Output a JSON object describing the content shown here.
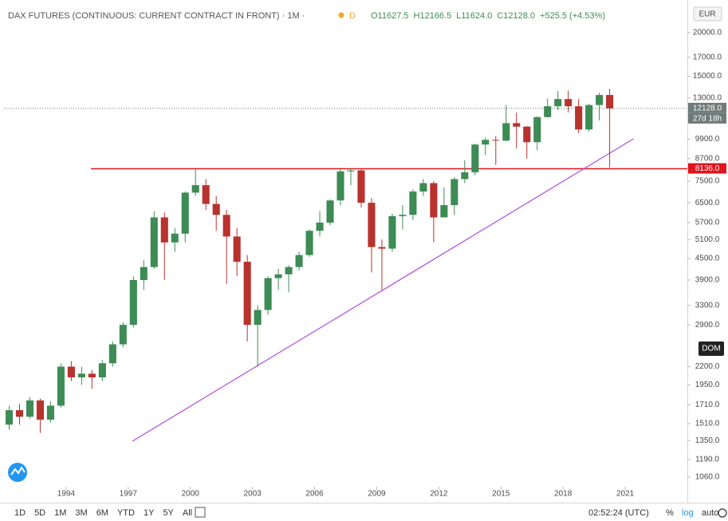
{
  "chart_data": {
    "type": "candlestick",
    "title": "DAX FUTURES (CONTINUOUS: CURRENT CONTRACT IN FRONT) · 1M ·",
    "interval_badge": "D",
    "header_ohlc": [
      "O11627.5",
      "H12166.5",
      "L11624.0",
      "C12128.0",
      "+525.5 (+4.53%)"
    ],
    "currency": "EUR",
    "log_scale": true,
    "grid": false,
    "up_color": "#3d8b55",
    "down_color": "#b8322e",
    "x": [
      1991.0,
      1991.5,
      1992.0,
      1992.5,
      1993.0,
      1993.5,
      1994.0,
      1994.5,
      1995.0,
      1995.5,
      1996.0,
      1996.5,
      1997.0,
      1997.5,
      1998.0,
      1998.5,
      1999.0,
      1999.5,
      2000.0,
      2000.5,
      2001.0,
      2001.5,
      2002.0,
      2002.5,
      2003.0,
      2003.5,
      2004.0,
      2004.5,
      2005.0,
      2005.5,
      2006.0,
      2006.5,
      2007.0,
      2007.5,
      2008.0,
      2008.5,
      2009.0,
      2009.5,
      2010.0,
      2010.5,
      2011.0,
      2011.5,
      2012.0,
      2012.5,
      2013.0,
      2013.5,
      2014.0,
      2014.5,
      2015.0,
      2015.5,
      2016.0,
      2016.5,
      2017.0,
      2017.5,
      2018.0,
      2018.5,
      2019.0,
      2019.5,
      2020.0
    ],
    "open": [
      1500,
      1650,
      1580,
      1760,
      1550,
      1700,
      2200,
      2050,
      2100,
      2050,
      2250,
      2550,
      2900,
      3900,
      4250,
      5900,
      5000,
      5300,
      6950,
      7300,
      6450,
      6000,
      5200,
      4400,
      2900,
      3200,
      3950,
      4050,
      4250,
      4600,
      5400,
      5700,
      6600,
      8000,
      8050,
      6500,
      4850,
      4800,
      5950,
      6000,
      7000,
      7400,
      5900,
      6400,
      7600,
      7950,
      9550,
      9850,
      9800,
      11000,
      10750,
      9700,
      11450,
      12300,
      12900,
      12300,
      10550,
      12400,
      13250
    ],
    "high": [
      1700,
      1720,
      1800,
      1780,
      1750,
      2250,
      2280,
      2200,
      2150,
      2300,
      2600,
      2950,
      4000,
      4450,
      6150,
      6100,
      5500,
      7000,
      8100,
      7600,
      6800,
      6200,
      5500,
      4600,
      3300,
      4000,
      4200,
      4300,
      4700,
      5450,
      6150,
      6650,
      8100,
      8150,
      8100,
      6700,
      5100,
      6050,
      6400,
      7100,
      7600,
      7500,
      7200,
      7700,
      8600,
      9600,
      10000,
      10100,
      12400,
      11800,
      10800,
      11500,
      12950,
      13600,
      13650,
      12900,
      12500,
      13450,
      13800
    ],
    "low": [
      1450,
      1500,
      1560,
      1420,
      1520,
      1680,
      2000,
      1950,
      1900,
      2000,
      2200,
      2500,
      2850,
      3650,
      4200,
      3900,
      4700,
      5000,
      6800,
      6200,
      5400,
      3800,
      4000,
      2600,
      2200,
      3100,
      3650,
      3600,
      4150,
      4550,
      5200,
      5600,
      6400,
      7300,
      6300,
      4100,
      3650,
      4700,
      5450,
      5800,
      6800,
      5000,
      5900,
      6000,
      7400,
      7800,
      8900,
      8350,
      9750,
      9300,
      8700,
      9200,
      11400,
      12000,
      11800,
      10300,
      10400,
      11200,
      8200
    ],
    "close": [
      1650,
      1580,
      1760,
      1550,
      1700,
      2200,
      2050,
      2100,
      2050,
      2250,
      2550,
      2900,
      3900,
      4250,
      5900,
      5000,
      5300,
      6950,
      7300,
      6450,
      6000,
      5200,
      4400,
      2900,
      3200,
      3950,
      4050,
      4250,
      4600,
      5400,
      5700,
      6600,
      8000,
      8050,
      6500,
      4850,
      4800,
      5950,
      6000,
      7000,
      7400,
      5900,
      6400,
      7600,
      7950,
      9550,
      9850,
      9800,
      11000,
      10750,
      9700,
      11450,
      12300,
      12900,
      12300,
      10550,
      12400,
      13250,
      12128
    ],
    "xlim": [
      1991,
      2024
    ],
    "xticks": [
      1994,
      1997,
      2000,
      2003,
      2006,
      2009,
      2012,
      2015,
      2018,
      2021
    ],
    "ylim": [
      905,
      24180
    ],
    "yticks": [
      {
        "value": 1060,
        "label": "1060.0"
      },
      {
        "value": 1190,
        "label": "1190.0"
      },
      {
        "value": 1350,
        "label": "1350.0"
      },
      {
        "value": 1510,
        "label": "1510.0"
      },
      {
        "value": 1710,
        "label": "1710.0"
      },
      {
        "value": 1950,
        "label": "1950.0"
      },
      {
        "value": 2200,
        "label": "2200.0"
      },
      {
        "value": 2900,
        "label": "2900.0"
      },
      {
        "value": 3300,
        "label": "3300.0"
      },
      {
        "value": 3900,
        "label": "3900.0"
      },
      {
        "value": 4500,
        "label": "4500.0"
      },
      {
        "value": 5100,
        "label": "5100.0"
      },
      {
        "value": 5700,
        "label": "5700.0"
      },
      {
        "value": 6500,
        "label": "6500.0"
      },
      {
        "value": 7500,
        "label": "7500.0"
      },
      {
        "value": 8700,
        "label": "8700.0"
      },
      {
        "value": 9900,
        "label": "9900.0"
      },
      {
        "value": 13000,
        "label": "13000.0"
      },
      {
        "value": 15000,
        "label": "15000.0"
      },
      {
        "value": 17000,
        "label": "17000.0"
      },
      {
        "value": 20000,
        "label": "20000.0"
      }
    ],
    "price_line": {
      "value": 12128,
      "label": "12128.0",
      "countdown": "27d 18h",
      "color": "#6e7b78"
    },
    "horizontal_line": {
      "value": 8136,
      "label": "8136.0",
      "x_start": 1995.2,
      "color": "#e0141e"
    },
    "trend_line": {
      "x": [
        1997.2,
        2021.4
      ],
      "y": [
        1344,
        9920
      ],
      "color": "#b24be0"
    },
    "badge": "DOM",
    "toolbar": [
      "1D",
      "5D",
      "1M",
      "3M",
      "6M",
      "YTD",
      "1Y",
      "5Y",
      "All"
    ],
    "clock": "02:52:24 (UTC)",
    "scale_buttons": [
      "%",
      "log",
      "auto"
    ]
  }
}
